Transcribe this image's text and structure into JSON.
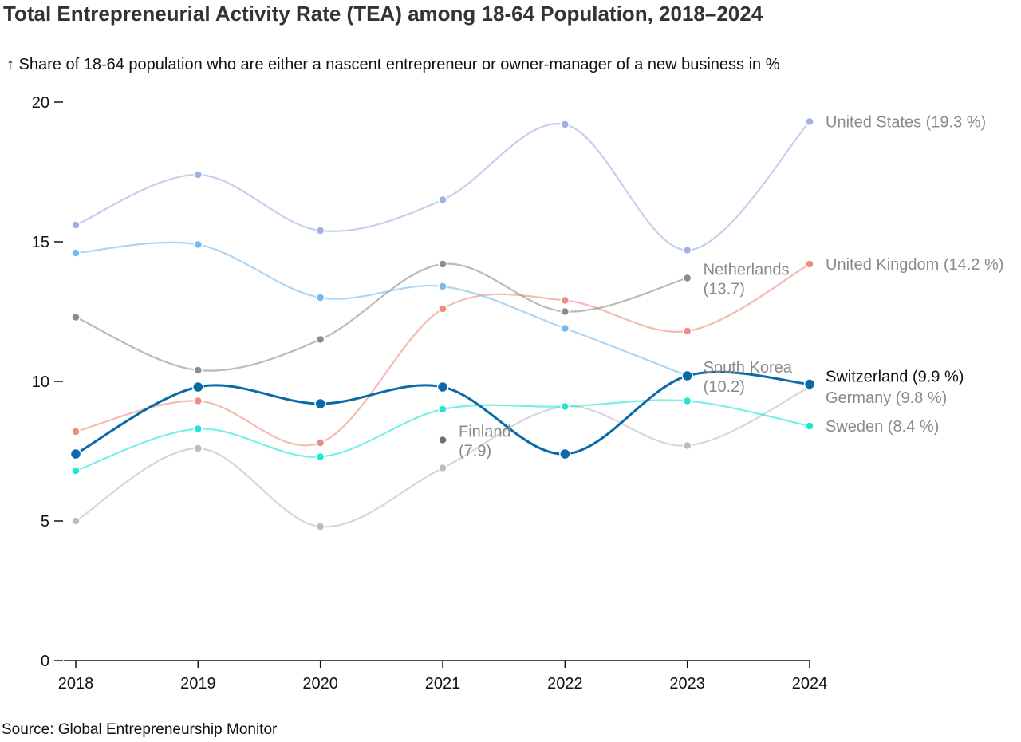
{
  "chart_data": {
    "type": "line",
    "title": "Total Entrepreneurial Activity Rate (TEA) among 18-64 Population, 2018–2024",
    "subtitle": "↑ Share of 18-64 population who are either a nascent entrepreneur or owner-manager of a new business in %",
    "source": "Source: Global Entrepreneurship Monitor",
    "x": [
      2018,
      2019,
      2020,
      2021,
      2022,
      2023,
      2024
    ],
    "ylim": [
      0,
      20
    ],
    "yticks": [
      0,
      5,
      10,
      15,
      20
    ],
    "grid": false,
    "series": [
      {
        "name": "United States",
        "label": "United States (19.3 %)",
        "color": "#9fb0e6",
        "values": [
          15.6,
          17.4,
          15.4,
          16.5,
          19.2,
          14.7,
          19.3
        ]
      },
      {
        "name": "United Kingdom",
        "label": "United Kingdom (14.2 %)",
        "color": "#f08c7e",
        "values": [
          8.2,
          9.3,
          7.8,
          12.6,
          12.9,
          11.8,
          14.2
        ]
      },
      {
        "name": "Netherlands",
        "label_lines": [
          "Netherlands",
          "(13.7)"
        ],
        "color": "#8c8c8c",
        "values": [
          12.3,
          10.4,
          11.5,
          14.2,
          12.5,
          13.7,
          null
        ]
      },
      {
        "name": "South Korea",
        "label_lines": [
          "South Korea",
          "(10.2)"
        ],
        "color": "#74b9f0",
        "values": [
          14.6,
          14.9,
          13.0,
          13.4,
          11.9,
          10.2,
          null
        ]
      },
      {
        "name": "Germany",
        "label": "Germany (9.8 %)",
        "color": "#bcbcbc",
        "values": [
          5.0,
          7.6,
          4.8,
          6.9,
          9.1,
          7.7,
          9.8
        ]
      },
      {
        "name": "Sweden",
        "label": "Sweden (8.4 %)",
        "color": "#1ee6d2",
        "values": [
          6.8,
          8.3,
          7.3,
          9.0,
          9.1,
          9.3,
          8.4
        ]
      },
      {
        "name": "Finland",
        "label_lines": [
          "Finland",
          "(7.9)"
        ],
        "color": "#6e6e6e",
        "values": [
          null,
          null,
          null,
          7.9,
          null,
          null,
          null
        ]
      },
      {
        "name": "Switzerland",
        "label": "Switzerland (9.9 %)",
        "color": "#0a6aa8",
        "highlight": true,
        "values": [
          7.4,
          9.8,
          9.2,
          9.8,
          7.4,
          10.2,
          9.9
        ]
      }
    ]
  }
}
